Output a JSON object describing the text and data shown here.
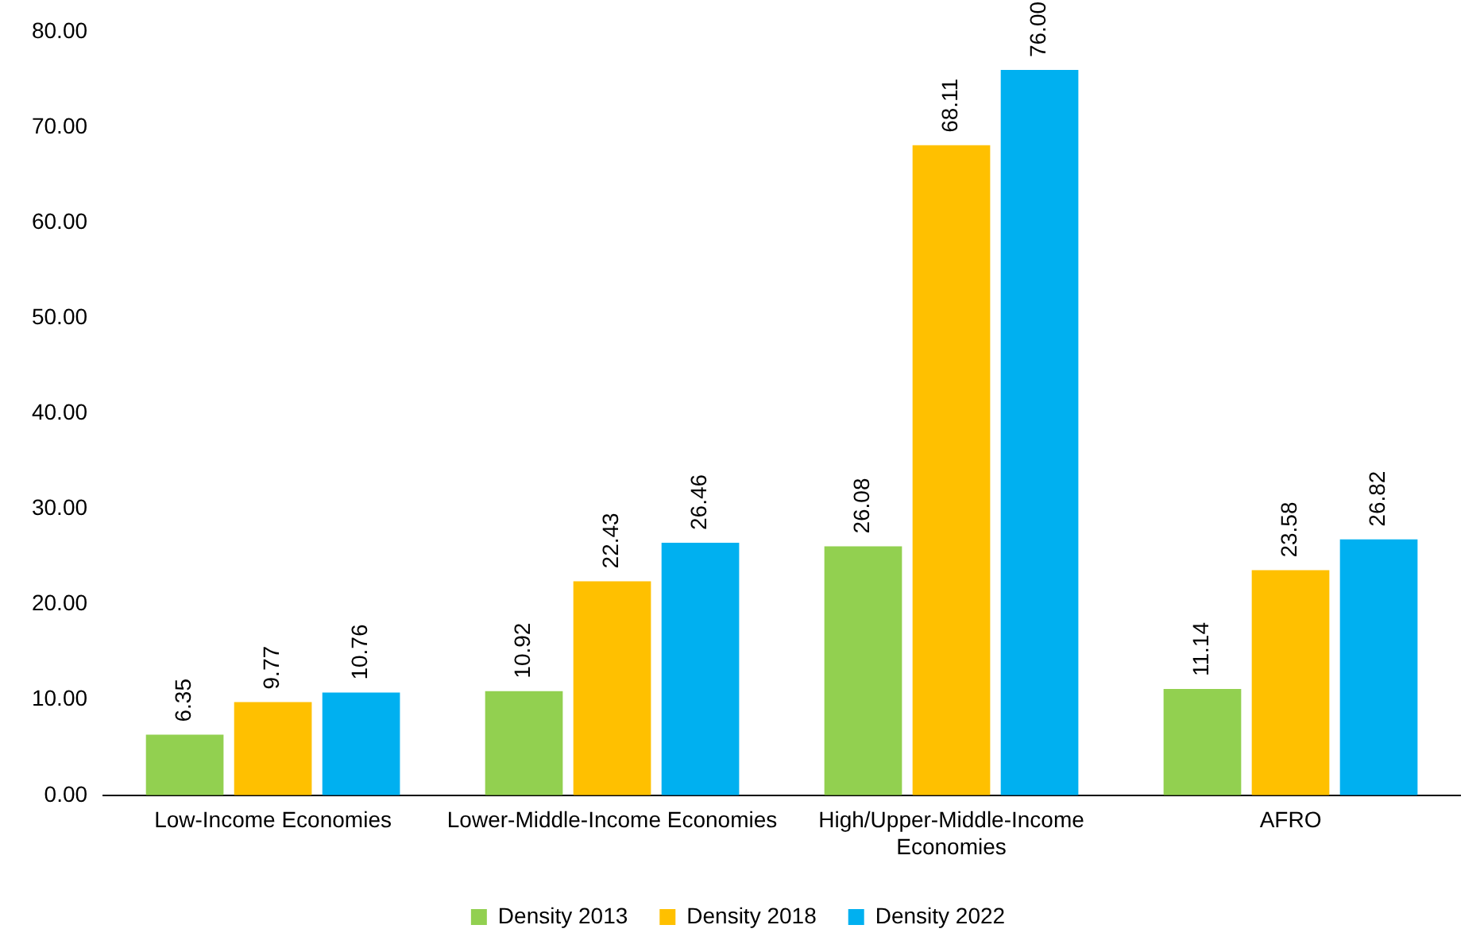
{
  "chart_data": {
    "type": "bar",
    "categories": [
      "Low-Income Economies",
      "Lower-Middle-Income Economies",
      "High/Upper-Middle-Income Economies",
      "AFRO"
    ],
    "series": [
      {
        "name": "Density 2013",
        "color": "#92d050",
        "values": [
          6.35,
          10.92,
          26.08,
          11.14
        ],
        "value_labels": [
          "6.35",
          "10.92",
          "26.08",
          "11.14"
        ]
      },
      {
        "name": "Density 2018",
        "color": "#ffc000",
        "values": [
          9.77,
          22.43,
          68.11,
          23.58
        ],
        "value_labels": [
          "9.77",
          "22.43",
          "68.11",
          "23.58"
        ]
      },
      {
        "name": "Density 2022",
        "color": "#00b0f0",
        "values": [
          10.76,
          26.46,
          76.0,
          26.82
        ],
        "value_labels": [
          "10.76",
          "26.46",
          "76.00",
          "26.82"
        ]
      }
    ],
    "ylim": [
      0,
      80
    ],
    "yticks": [
      {
        "value": 0,
        "label": "0.00"
      },
      {
        "value": 10,
        "label": "10.00"
      },
      {
        "value": 20,
        "label": "20.00"
      },
      {
        "value": 30,
        "label": "30.00"
      },
      {
        "value": 40,
        "label": "40.00"
      },
      {
        "value": 50,
        "label": "50.00"
      },
      {
        "value": 60,
        "label": "60.00"
      },
      {
        "value": 70,
        "label": "70.00"
      },
      {
        "value": 80,
        "label": "80.00"
      }
    ],
    "grid": false,
    "legend": "bottom"
  }
}
